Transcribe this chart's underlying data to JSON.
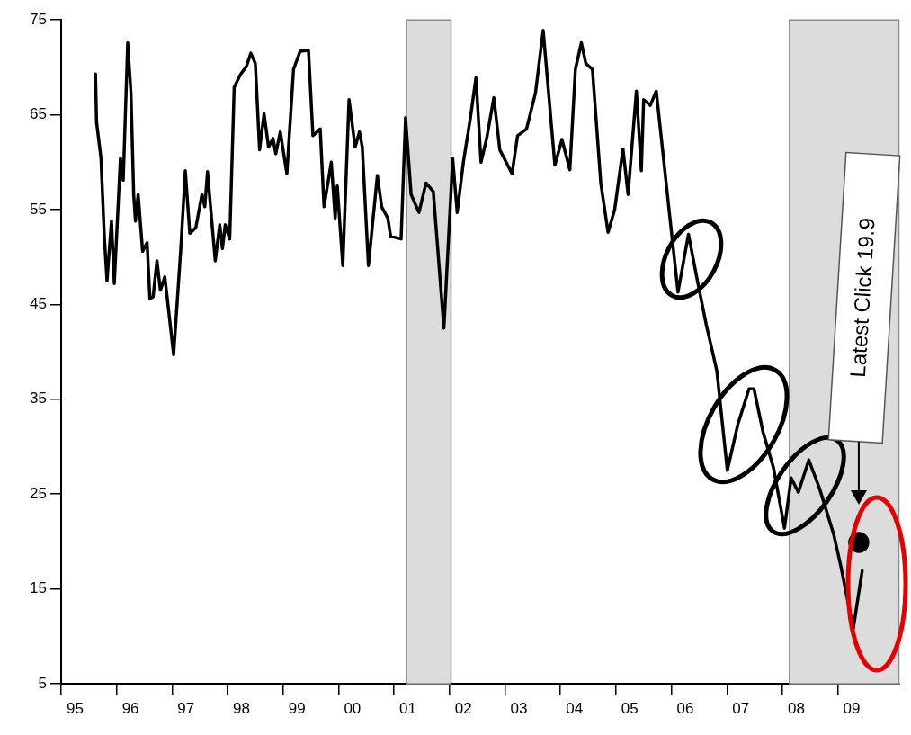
{
  "chart_data": {
    "type": "line",
    "x": [
      "1995-08-14",
      "1995-08-21",
      "1995-09-20",
      "1995-10-11",
      "1995-10-29",
      "1995-11-28",
      "1995-12-16",
      "1996-01-26",
      "1996-02-14",
      "1996-03-13",
      "1996-04-04",
      "1996-04-22",
      "1996-05-03",
      "1996-05-21",
      "1996-06-20",
      "1996-07-19",
      "1996-08-07",
      "1996-08-28",
      "1996-09-23",
      "1996-10-15",
      "1996-11-14",
      "1997-01-11",
      "1997-02-28",
      "1997-03-27",
      "1997-04-26",
      "1997-06-05",
      "1997-07-15",
      "1997-08-03",
      "1997-08-21",
      "1997-10-11",
      "1997-11-10",
      "1997-11-28",
      "1997-12-16",
      "1998-01-15",
      "1998-02-14",
      "1998-03-23",
      "1998-05-03",
      "1998-06-02",
      "1998-07-01",
      "1998-07-29",
      "1998-08-28",
      "1998-09-27",
      "1998-10-26",
      "1998-11-14",
      "1998-12-13",
      "1999-01-26",
      "1999-03-09",
      "1999-04-22",
      "1999-06-16",
      "1999-07-15",
      "1999-09-02",
      "1999-09-27",
      "1999-11-14",
      "1999-12-09",
      "1999-12-23",
      "2000-01-29",
      "2000-03-09",
      "2000-04-19",
      "2000-05-17",
      "2000-06-05",
      "2000-07-15",
      "2000-09-13",
      "2000-10-11",
      "2000-11-21",
      "2000-12-09",
      "2001-02-17",
      "2001-03-16",
      "2001-04-22",
      "2001-06-13",
      "2001-07-29",
      "2001-09-16",
      "2001-11-25",
      "2002-01-22",
      "2002-02-21",
      "2002-04-01",
      "2002-05-17",
      "2002-06-23",
      "2002-07-26",
      "2002-09-02",
      "2002-10-19",
      "2002-11-28",
      "2003-02-17",
      "2003-03-23",
      "2003-05-21",
      "2003-07-19",
      "2003-09-09",
      "2003-11-25",
      "2004-01-11",
      "2004-03-02",
      "2004-04-08",
      "2004-05-17",
      "2004-06-16",
      "2004-07-29",
      "2004-09-23",
      "2004-11-10",
      "2004-12-23",
      "2005-02-17",
      "2005-03-20",
      "2005-05-14",
      "2005-06-16",
      "2005-07-01",
      "2005-08-14",
      "2005-09-23",
      "2005-12-05",
      "2006-02-14",
      "2006-04-22",
      "2006-06-20",
      "2006-08-17",
      "2006-10-26",
      "2007-01-04",
      "2007-03-13",
      "2007-05-25",
      "2007-06-27",
      "2007-08-25",
      "2007-11-03",
      "2008-01-15",
      "2008-02-28",
      "2008-04-15",
      "2008-06-23",
      "2008-09-02",
      "2008-12-05",
      "2009-01-22",
      "2009-04-11",
      "2009-06-09"
    ],
    "series": [
      {
        "color": "#000000",
        "values": [
          69.3,
          64.2,
          60.4,
          52.2,
          47.5,
          53.8,
          47.2,
          60.4,
          58.1,
          72.6,
          67.3,
          56.6,
          53.8,
          56.6,
          50.6,
          51.5,
          45.6,
          45.8,
          49.6,
          46.5,
          47.9,
          39.7,
          50.9,
          59.1,
          52.5,
          53.1,
          56.6,
          55.3,
          59.0,
          49.6,
          53.4,
          50.9,
          53.4,
          51.9,
          67.9,
          69.2,
          70.1,
          71.5,
          70.4,
          61.3,
          65.1,
          61.6,
          62.5,
          60.9,
          63.2,
          58.8,
          69.8,
          71.7,
          71.8,
          62.8,
          63.5,
          55.3,
          60.0,
          54.1,
          57.5,
          49.1,
          66.6,
          61.6,
          63.2,
          61.6,
          49.1,
          58.6,
          55.3,
          54.1,
          52.2,
          51.9,
          64.7,
          56.6,
          54.7,
          57.8,
          56.9,
          42.5,
          60.4,
          54.7,
          60.0,
          64.7,
          68.9,
          60.0,
          62.5,
          66.8,
          61.3,
          58.8,
          62.8,
          63.5,
          67.3,
          73.9,
          59.7,
          62.4,
          59.2,
          69.8,
          72.6,
          70.4,
          69.8,
          57.8,
          52.6,
          55.0,
          61.4,
          56.6,
          67.5,
          59.1,
          66.6,
          66.0,
          67.5,
          56.6,
          46.3,
          52.4,
          47.5,
          42.9,
          38.0,
          27.5,
          32.4,
          36.1,
          36.1,
          31.6,
          27.8,
          21.4,
          26.7,
          25.2,
          28.6,
          25.6,
          20.7,
          17.3,
          10.8,
          16.9
        ]
      },
      {
        "type": "scatter",
        "marker": "circle",
        "color": "#000000",
        "x": [
          "2009-05-17"
        ],
        "values": [
          19.9
        ]
      }
    ],
    "xlim": [
      "1995-01-01",
      "2010-02-07"
    ],
    "xticks": [
      {
        "value": "1995-01",
        "label": null
      },
      {
        "value": "1995-04",
        "label": "95"
      },
      {
        "value": "1996-01",
        "label": null
      },
      {
        "value": "1996-04",
        "label": "96"
      },
      {
        "value": "1997-01",
        "label": null
      },
      {
        "value": "1997-04",
        "label": "97"
      },
      {
        "value": "1998-01",
        "label": null
      },
      {
        "value": "1998-04",
        "label": "98"
      },
      {
        "value": "1999-01",
        "label": null
      },
      {
        "value": "1999-04",
        "label": "99"
      },
      {
        "value": "2000-01",
        "label": null
      },
      {
        "value": "2000-04",
        "label": "00"
      },
      {
        "value": "2001-01",
        "label": null
      },
      {
        "value": "2001-04",
        "label": "01"
      },
      {
        "value": "2002-01",
        "label": null
      },
      {
        "value": "2002-04",
        "label": "02"
      },
      {
        "value": "2003-01",
        "label": null
      },
      {
        "value": "2003-04",
        "label": "03"
      },
      {
        "value": "2004-01",
        "label": null
      },
      {
        "value": "2004-04",
        "label": "04"
      },
      {
        "value": "2005-01",
        "label": null
      },
      {
        "value": "2005-04",
        "label": "05"
      },
      {
        "value": "2006-01",
        "label": null
      },
      {
        "value": "2006-04",
        "label": "06"
      },
      {
        "value": "2007-01",
        "label": null
      },
      {
        "value": "2007-04",
        "label": "07"
      },
      {
        "value": "2008-01",
        "label": null
      },
      {
        "value": "2008-04",
        "label": "08"
      },
      {
        "value": "2009-01",
        "label": null
      },
      {
        "value": "2009-04",
        "label": "09"
      }
    ],
    "ylim": [
      5,
      75
    ],
    "yticks": [
      5,
      15,
      25,
      35,
      45,
      55,
      65,
      75
    ],
    "grid": false,
    "bands": [
      {
        "axis": "x",
        "from": "2001-03-23",
        "to": "2002-01-11",
        "color": "#dcdcdc"
      },
      {
        "axis": "x",
        "from": "2008-02-17",
        "to": "2010-02-07",
        "color": "#dcdcdc"
      }
    ],
    "annotations": [
      "Latest Click 19.9"
    ]
  }
}
